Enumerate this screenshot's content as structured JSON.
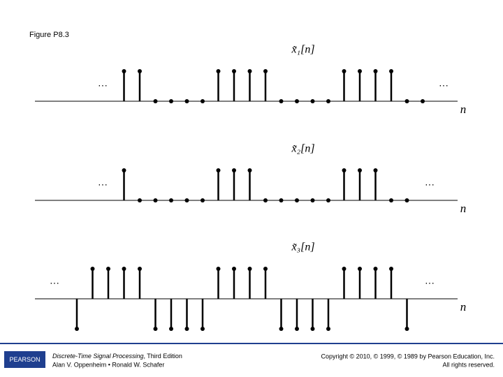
{
  "header": {
    "figure": "Figure P8.3"
  },
  "chart_data": [
    {
      "type": "stem",
      "title": "x̃₁[n]",
      "x_label": "n",
      "left_annotation": "···",
      "right_annotation": "···",
      "ylim": [
        -1,
        1
      ],
      "values": [
        null,
        null,
        null,
        1,
        1,
        0,
        0,
        0,
        0,
        1,
        1,
        1,
        1,
        0,
        0,
        0,
        0,
        1,
        1,
        1,
        1,
        0,
        0
      ]
    },
    {
      "type": "stem",
      "title": "x̃₂[n]",
      "x_label": "n",
      "left_annotation": "···",
      "right_annotation": "···",
      "ylim": [
        -1,
        1
      ],
      "values": [
        null,
        null,
        null,
        1,
        0,
        0,
        0,
        0,
        0,
        1,
        1,
        1,
        0,
        0,
        0,
        0,
        0,
        1,
        1,
        1,
        0,
        0,
        null
      ]
    },
    {
      "type": "stem",
      "title": "x̃₃[n]",
      "x_label": "n",
      "left_annotation": "···",
      "right_annotation": "···",
      "ylim": [
        -1,
        1
      ],
      "values": [
        -1,
        1,
        1,
        1,
        1,
        -1,
        -1,
        -1,
        -1,
        1,
        1,
        1,
        1,
        -1,
        -1,
        -1,
        -1,
        1,
        1,
        1,
        1,
        -1,
        null
      ]
    }
  ],
  "footer": {
    "logo": "PEARSON",
    "book_title": "Discrete-Time Signal Processing",
    "edition": ", Third Edition",
    "authors": "Alan V. Oppenheim • Ronald W. Schafer",
    "copyright": "Copyright © 2010, © 1999, © 1989 by Pearson Education, Inc.",
    "rights": "All rights reserved."
  }
}
